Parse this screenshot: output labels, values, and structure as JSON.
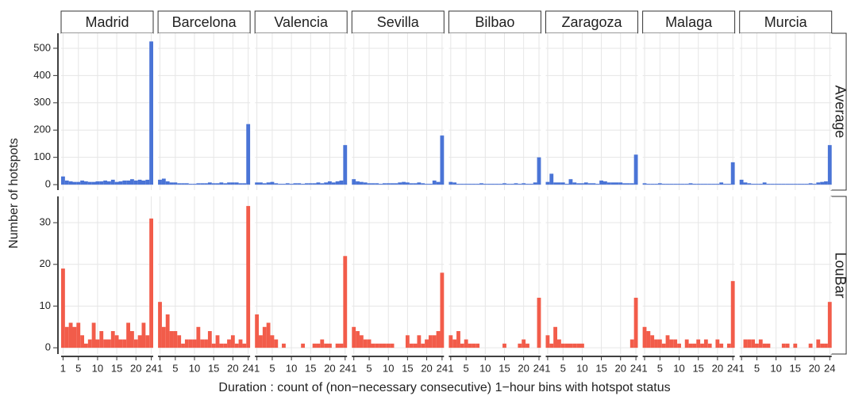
{
  "chart_data": {
    "type": "bar",
    "x_label": "Duration : count of (non−necessary consecutive) 1−hour bins with hotspot status",
    "y_label": "Number of hotspots",
    "columns": [
      "Madrid",
      "Barcelona",
      "Valencia",
      "Sevilla",
      "Bilbao",
      "Zaragoza",
      "Malaga",
      "Murcia"
    ],
    "categories": [
      1,
      2,
      3,
      4,
      5,
      6,
      7,
      8,
      9,
      10,
      11,
      12,
      13,
      14,
      15,
      16,
      17,
      18,
      19,
      20,
      21,
      22,
      23,
      24
    ],
    "xlim": [
      0.5,
      24.5
    ],
    "xticks": [
      1,
      5,
      10,
      15,
      20,
      24
    ],
    "grid": true,
    "rows": [
      {
        "name": "Average",
        "color": "#4a74d6",
        "ylim": [
          -20,
          555
        ],
        "yticks": [
          0,
          100,
          200,
          300,
          400,
          500
        ],
        "values": [
          [
            30,
            15,
            12,
            10,
            10,
            15,
            12,
            10,
            10,
            12,
            12,
            15,
            12,
            18,
            10,
            12,
            15,
            15,
            20,
            15,
            18,
            15,
            18,
            525
          ],
          [
            18,
            22,
            12,
            8,
            8,
            5,
            5,
            5,
            3,
            3,
            5,
            5,
            5,
            8,
            5,
            5,
            8,
            5,
            8,
            8,
            8,
            5,
            5,
            222
          ],
          [
            8,
            8,
            5,
            8,
            10,
            5,
            3,
            3,
            5,
            3,
            5,
            5,
            3,
            5,
            5,
            5,
            8,
            5,
            8,
            12,
            8,
            12,
            15,
            145
          ],
          [
            20,
            12,
            10,
            8,
            5,
            5,
            5,
            3,
            5,
            5,
            5,
            5,
            8,
            10,
            8,
            5,
            5,
            8,
            5,
            3,
            3,
            15,
            10,
            180
          ],
          [
            10,
            8,
            3,
            3,
            3,
            3,
            3,
            3,
            5,
            3,
            3,
            3,
            3,
            3,
            5,
            3,
            3,
            5,
            3,
            5,
            3,
            3,
            8,
            100
          ],
          [
            10,
            40,
            8,
            8,
            8,
            3,
            20,
            8,
            5,
            5,
            8,
            5,
            5,
            3,
            15,
            12,
            8,
            8,
            8,
            8,
            5,
            5,
            5,
            110
          ],
          [
            5,
            3,
            3,
            3,
            5,
            3,
            3,
            3,
            3,
            3,
            3,
            3,
            5,
            3,
            3,
            3,
            3,
            3,
            3,
            3,
            8,
            3,
            3,
            82
          ],
          [
            18,
            8,
            5,
            3,
            3,
            3,
            8,
            3,
            3,
            3,
            3,
            3,
            3,
            3,
            3,
            3,
            3,
            3,
            5,
            3,
            8,
            10,
            12,
            145
          ]
        ]
      },
      {
        "name": "LouBar",
        "color": "#f25c4a",
        "ylim": [
          -1.5,
          36.3
        ],
        "yticks": [
          0,
          10,
          20,
          30
        ],
        "values": [
          [
            19,
            5,
            6,
            5,
            6,
            3,
            1,
            2,
            6,
            2,
            4,
            2,
            2,
            4,
            3,
            2,
            2,
            6,
            4,
            2,
            3,
            6,
            3,
            31
          ],
          [
            11,
            5,
            8,
            4,
            4,
            3,
            1,
            2,
            2,
            2,
            5,
            2,
            2,
            4,
            1,
            3,
            1,
            1,
            2,
            3,
            1,
            2,
            1,
            34
          ],
          [
            8,
            3,
            5,
            6,
            3,
            2,
            0,
            1,
            0,
            0,
            0,
            0,
            1,
            0,
            0,
            1,
            1,
            2,
            1,
            1,
            0,
            1,
            1,
            22
          ],
          [
            5,
            4,
            3,
            2,
            2,
            1,
            1,
            1,
            1,
            1,
            1,
            0,
            0,
            0,
            3,
            1,
            1,
            3,
            1,
            2,
            3,
            3,
            4,
            18
          ],
          [
            3,
            2,
            4,
            1,
            2,
            1,
            1,
            1,
            0,
            0,
            0,
            0,
            0,
            0,
            1,
            0,
            0,
            0,
            1,
            2,
            1,
            0,
            0,
            12
          ],
          [
            3,
            1,
            5,
            2,
            1,
            1,
            1,
            1,
            1,
            1,
            0,
            0,
            0,
            0,
            0,
            0,
            0,
            0,
            0,
            0,
            0,
            0,
            2,
            12
          ],
          [
            5,
            4,
            3,
            2,
            2,
            1,
            3,
            2,
            2,
            1,
            0,
            2,
            1,
            1,
            2,
            1,
            2,
            1,
            0,
            2,
            1,
            0,
            1,
            16
          ],
          [
            0,
            2,
            2,
            2,
            1,
            2,
            1,
            1,
            0,
            0,
            0,
            1,
            1,
            0,
            1,
            0,
            0,
            0,
            1,
            0,
            2,
            1,
            1,
            11
          ]
        ]
      }
    ]
  }
}
